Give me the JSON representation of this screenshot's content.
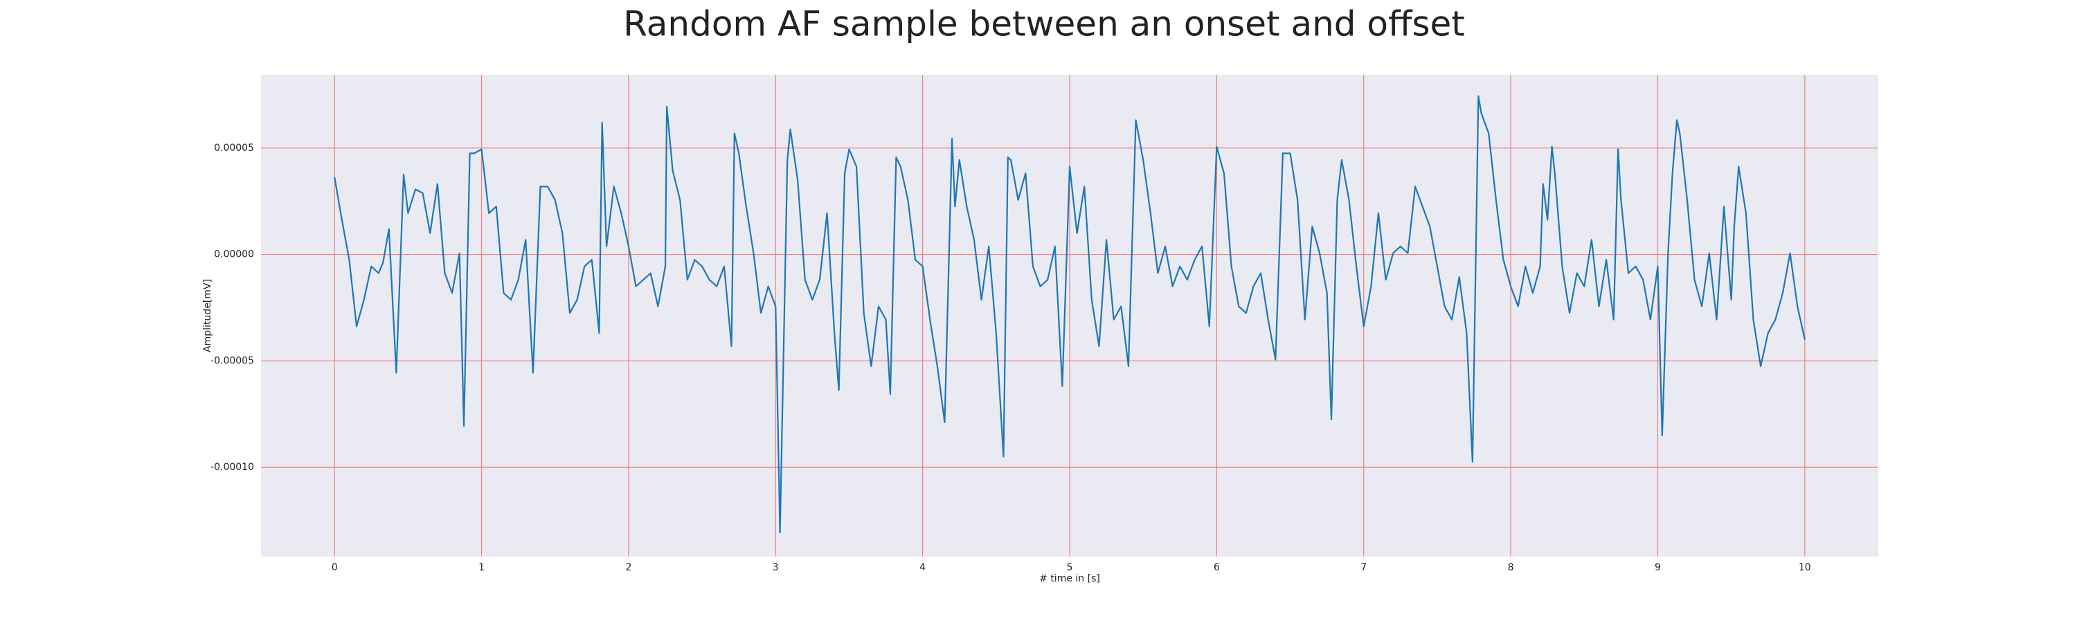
{
  "chart_data": {
    "type": "line",
    "title": "Random AF sample between an onset and offset",
    "x_label": "# time in [s]",
    "y_label": "Amplitude[mV]",
    "color": "#1f77b4",
    "grid": true,
    "grid_color": "#f08080",
    "background": "#eaeaf2",
    "xlim": [
      -0.5,
      10.5
    ],
    "ylim": [
      -0.0001419,
      8.44e-05
    ],
    "xticks": [
      0,
      1,
      2,
      3,
      4,
      5,
      6,
      7,
      8,
      9,
      10
    ],
    "yticks": [
      {
        "value": -0.0001,
        "label": "-0.00010"
      },
      {
        "value": -5e-05,
        "label": "-0.00005"
      },
      {
        "value": 0,
        "label": "0.00000"
      },
      {
        "value": 5e-05,
        "label": "0.00005"
      }
    ],
    "x": [
      0,
      0.05,
      0.1,
      0.15,
      0.2,
      0.25,
      0.3,
      0.33,
      0.37,
      0.42,
      0.47,
      0.5,
      0.55,
      0.6,
      0.65,
      0.7,
      0.75,
      0.8,
      0.85,
      0.88,
      0.92,
      0.95,
      1.0,
      1.05,
      1.1,
      1.15,
      1.2,
      1.25,
      1.3,
      1.35,
      1.4,
      1.45,
      1.5,
      1.55,
      1.6,
      1.65,
      1.7,
      1.75,
      1.8,
      1.82,
      1.85,
      1.9,
      1.95,
      2.0,
      2.05,
      2.1,
      2.15,
      2.2,
      2.25,
      2.26,
      2.3,
      2.35,
      2.4,
      2.45,
      2.5,
      2.55,
      2.6,
      2.65,
      2.7,
      2.72,
      2.75,
      2.8,
      2.85,
      2.9,
      2.95,
      3.0,
      3.03,
      3.08,
      3.1,
      3.15,
      3.2,
      3.25,
      3.3,
      3.35,
      3.4,
      3.43,
      3.47,
      3.5,
      3.55,
      3.6,
      3.65,
      3.7,
      3.75,
      3.78,
      3.82,
      3.85,
      3.9,
      3.95,
      4.0,
      4.05,
      4.1,
      4.15,
      4.2,
      4.22,
      4.25,
      4.3,
      4.35,
      4.4,
      4.45,
      4.5,
      4.55,
      4.58,
      4.6,
      4.65,
      4.7,
      4.75,
      4.8,
      4.85,
      4.9,
      4.95,
      5.0,
      5.05,
      5.1,
      5.15,
      5.2,
      5.25,
      5.3,
      5.35,
      5.4,
      5.45,
      5.5,
      5.55,
      5.6,
      5.65,
      5.7,
      5.75,
      5.8,
      5.85,
      5.9,
      5.95,
      6.0,
      6.05,
      6.1,
      6.15,
      6.2,
      6.25,
      6.3,
      6.35,
      6.4,
      6.45,
      6.5,
      6.55,
      6.6,
      6.65,
      6.7,
      6.75,
      6.78,
      6.82,
      6.85,
      6.9,
      6.95,
      7.0,
      7.05,
      7.1,
      7.15,
      7.2,
      7.25,
      7.3,
      7.35,
      7.4,
      7.45,
      7.5,
      7.55,
      7.6,
      7.65,
      7.7,
      7.74,
      7.78,
      7.8,
      7.85,
      7.9,
      7.95,
      8.0,
      8.05,
      8.1,
      8.15,
      8.2,
      8.22,
      8.25,
      8.28,
      8.3,
      8.35,
      8.4,
      8.45,
      8.5,
      8.55,
      8.6,
      8.65,
      8.7,
      8.73,
      8.75,
      8.8,
      8.85,
      8.9,
      8.95,
      9.0,
      9.03,
      9.07,
      9.1,
      9.13,
      9.15,
      9.2,
      9.25,
      9.3,
      9.35,
      9.4,
      9.45,
      9.5,
      9.52,
      9.55,
      9.6,
      9.65,
      9.7,
      9.75,
      9.8,
      9.85,
      9.9,
      9.95,
      10.0
    ],
    "values": [
      3.63e-05,
      1.63e-05,
      -2.5e-06,
      -3.38e-05,
      -2.13e-05,
      -5.6e-06,
      -8.8e-06,
      -3.8e-06,
      1.19e-05,
      -5.56e-05,
      3.75e-05,
      1.94e-05,
      3.06e-05,
      2.88e-05,
      1e-05,
      3.31e-05,
      -8.8e-06,
      -1.81e-05,
      6e-07,
      -8.06e-05,
      4.75e-05,
      4.75e-05,
      4.94e-05,
      1.94e-05,
      2.25e-05,
      -1.81e-05,
      -2.13e-05,
      -1.19e-05,
      6.9e-06,
      -5.56e-05,
      3.19e-05,
      3.19e-05,
      2.56e-05,
      1e-05,
      -2.75e-05,
      -2.13e-05,
      -5.6e-06,
      -2.5e-06,
      -3.69e-05,
      6.19e-05,
      3.8e-06,
      3.19e-05,
      1.94e-05,
      3.8e-06,
      -1.5e-05,
      -1.19e-05,
      -8.8e-06,
      -2.44e-05,
      -5.6e-06,
      6.94e-05,
      3.94e-05,
      2.56e-05,
      -1.19e-05,
      -2.5e-06,
      -5.6e-06,
      -1.19e-05,
      -1.5e-05,
      -5.6e-06,
      -4.31e-05,
      5.69e-05,
      4.75e-05,
      2.25e-05,
      6e-07,
      -2.75e-05,
      -1.5e-05,
      -2.44e-05,
      -0.0001306,
      4.44e-05,
      5.88e-05,
      3.5e-05,
      -1.19e-05,
      -2.13e-05,
      -1.19e-05,
      1.94e-05,
      -3.69e-05,
      -6.38e-05,
      3.81e-05,
      4.94e-05,
      4.13e-05,
      -2.75e-05,
      -5.25e-05,
      -2.44e-05,
      -3.06e-05,
      -6.56e-05,
      4.56e-05,
      4.13e-05,
      2.56e-05,
      -2.5e-06,
      -5.6e-06,
      -3.06e-05,
      -5.25e-05,
      -7.88e-05,
      5.44e-05,
      2.25e-05,
      4.44e-05,
      2.25e-05,
      6.9e-06,
      -2.13e-05,
      3.8e-06,
      -3.69e-05,
      -9.5e-05,
      4.56e-05,
      4.44e-05,
      2.56e-05,
      3.81e-05,
      -5.6e-06,
      -1.5e-05,
      -1.19e-05,
      3.8e-06,
      -6.19e-05,
      4.13e-05,
      1e-05,
      3.19e-05,
      -2.13e-05,
      -4.31e-05,
      6.9e-06,
      -3.06e-05,
      -2.44e-05,
      -5.25e-05,
      6.31e-05,
      4.44e-05,
      1.94e-05,
      -8.8e-06,
      3.8e-06,
      -1.5e-05,
      -5.6e-06,
      -1.19e-05,
      -2.5e-06,
      3.8e-06,
      -3.38e-05,
      5.06e-05,
      3.81e-05,
      -5.6e-06,
      -2.44e-05,
      -2.75e-05,
      -1.5e-05,
      -8.8e-06,
      -3.06e-05,
      -4.94e-05,
      4.75e-05,
      4.75e-05,
      2.56e-05,
      -3.06e-05,
      1.31e-05,
      6e-07,
      -1.81e-05,
      -7.75e-05,
      2.56e-05,
      4.44e-05,
      2.56e-05,
      -5.6e-06,
      -3.38e-05,
      -1.5e-05,
      1.94e-05,
      -1.19e-05,
      6e-07,
      3.8e-06,
      6e-07,
      3.19e-05,
      2.25e-05,
      1.31e-05,
      -5.6e-06,
      -2.44e-05,
      -3.06e-05,
      -1.06e-05,
      -3.69e-05,
      -9.75e-05,
      7.44e-05,
      6.63e-05,
      5.69e-05,
      2.56e-05,
      -2.5e-06,
      -1.5e-05,
      -2.44e-05,
      -5.6e-06,
      -1.81e-05,
      -5.6e-06,
      3.31e-05,
      1.63e-05,
      5.06e-05,
      3.81e-05,
      -5.6e-06,
      -2.75e-05,
      -8.8e-06,
      -1.5e-05,
      6.9e-06,
      -2.44e-05,
      -2.5e-06,
      -3.06e-05,
      4.94e-05,
      2.56e-05,
      -8.8e-06,
      -5.6e-06,
      -1.19e-05,
      -3.06e-05,
      -5.6e-06,
      -8.5e-05,
      6e-07,
      3.81e-05,
      6.31e-05,
      5.69e-05,
      2.56e-05,
      -1.19e-05,
      -2.44e-05,
      6e-07,
      -3.06e-05,
      2.25e-05,
      -2.13e-05,
      1.31e-05,
      4.13e-05,
      1.94e-05,
      -3.06e-05,
      -5.25e-05,
      -3.69e-05,
      -3.06e-05,
      -1.81e-05,
      6e-07,
      -2.44e-05,
      -4e-05
    ]
  }
}
